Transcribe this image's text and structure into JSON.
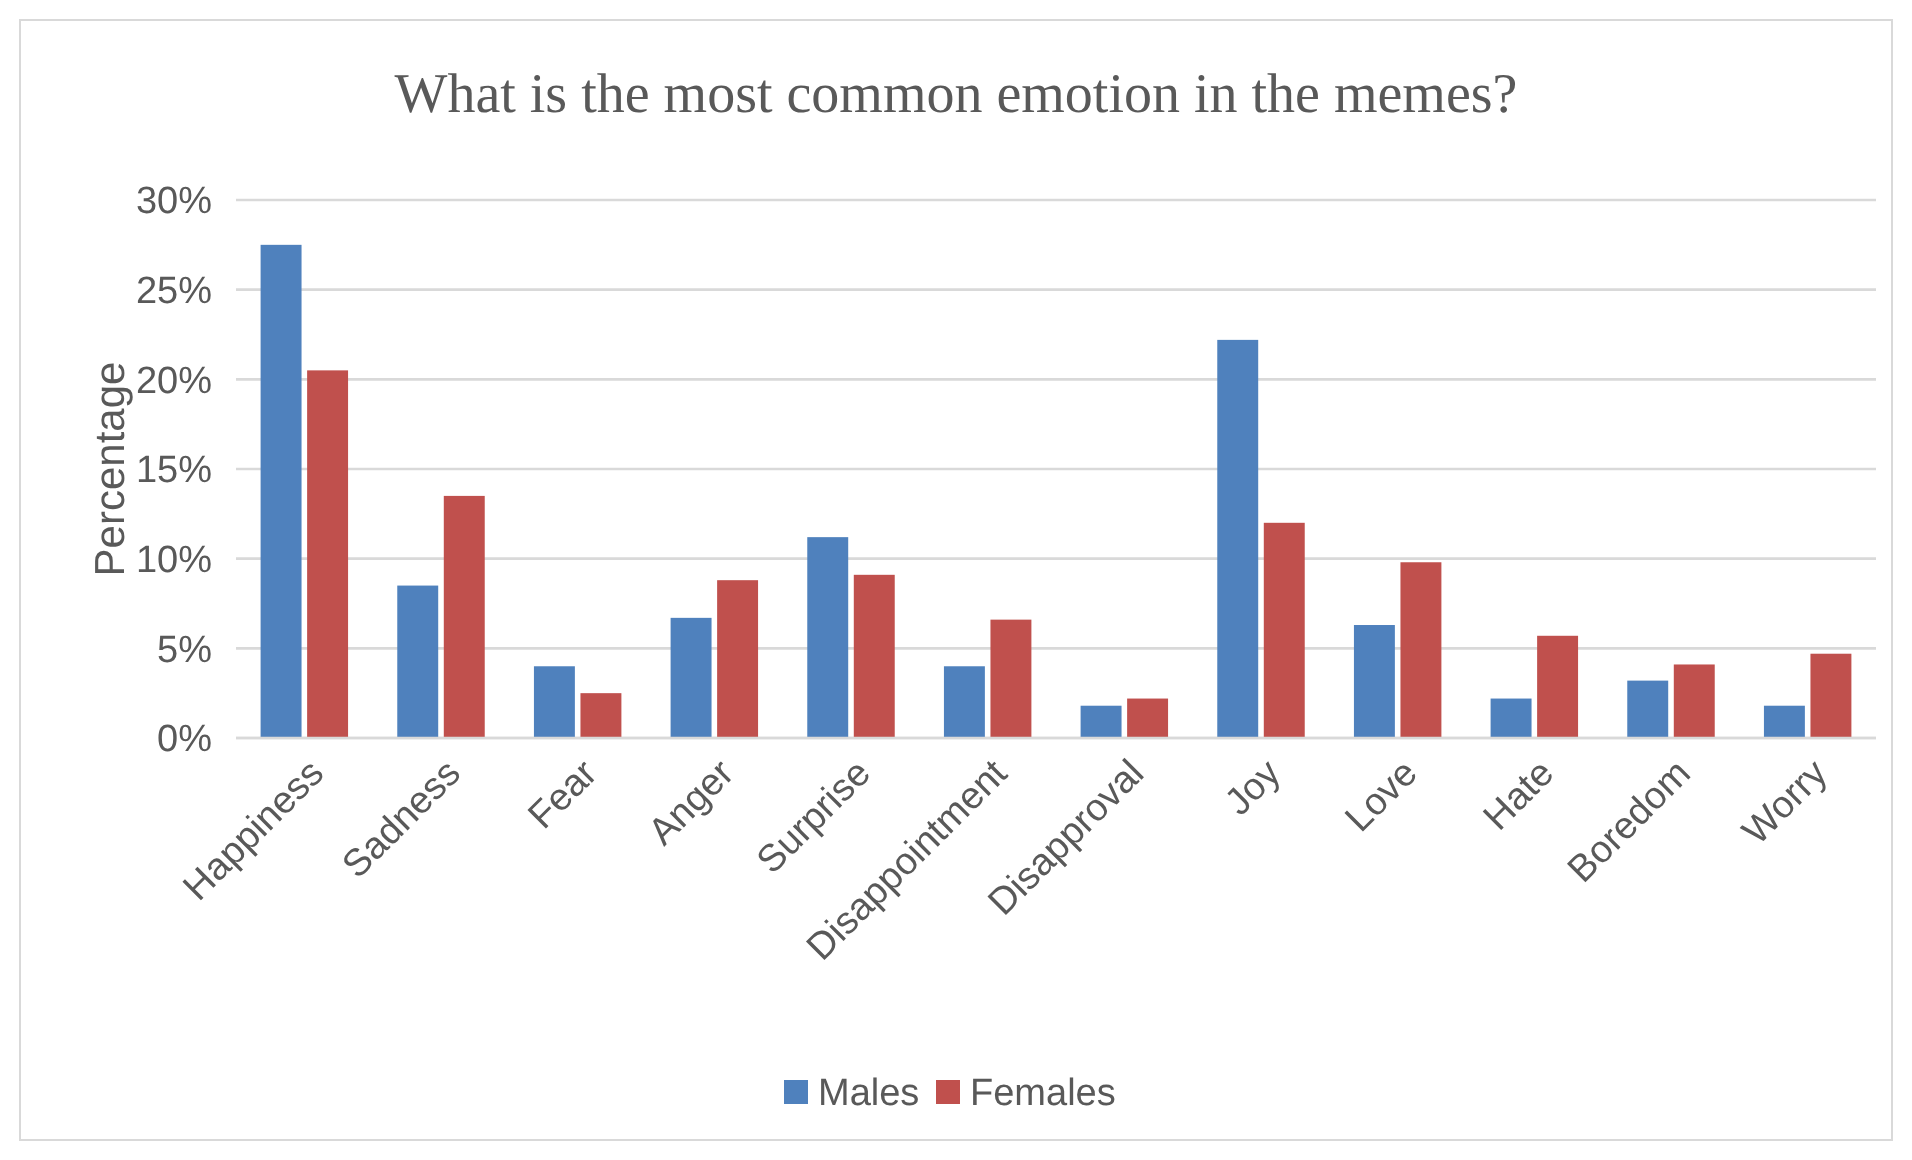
{
  "chart_data": {
    "type": "bar",
    "title": "What is the most common emotion in the memes?",
    "ylabel": "Percentage",
    "categories": [
      "Happiness",
      "Sadness",
      "Fear",
      "Anger",
      "Surprise",
      "Disappointment",
      "Disapproval",
      "Joy",
      "Love",
      "Hate",
      "Boredom",
      "Worry"
    ],
    "series": [
      {
        "name": "Males",
        "color": "#4f81bd",
        "values": [
          27.5,
          8.5,
          4.0,
          6.7,
          11.2,
          4.0,
          1.8,
          22.2,
          6.3,
          2.2,
          3.2,
          1.8
        ]
      },
      {
        "name": "Females",
        "color": "#c0504d",
        "values": [
          20.5,
          13.5,
          2.5,
          8.8,
          9.1,
          6.6,
          2.2,
          12.0,
          9.8,
          5.7,
          4.1,
          4.7
        ]
      }
    ],
    "ylim": [
      0,
      30
    ],
    "yticks": [
      {
        "value": 0,
        "label": "0%"
      },
      {
        "value": 5,
        "label": "5%"
      },
      {
        "value": 10,
        "label": "10%"
      },
      {
        "value": 15,
        "label": "15%"
      },
      {
        "value": 20,
        "label": "20%"
      },
      {
        "value": 25,
        "label": "25%"
      },
      {
        "value": 30,
        "label": "30%"
      }
    ],
    "grid": "y",
    "legend": "bottom"
  }
}
